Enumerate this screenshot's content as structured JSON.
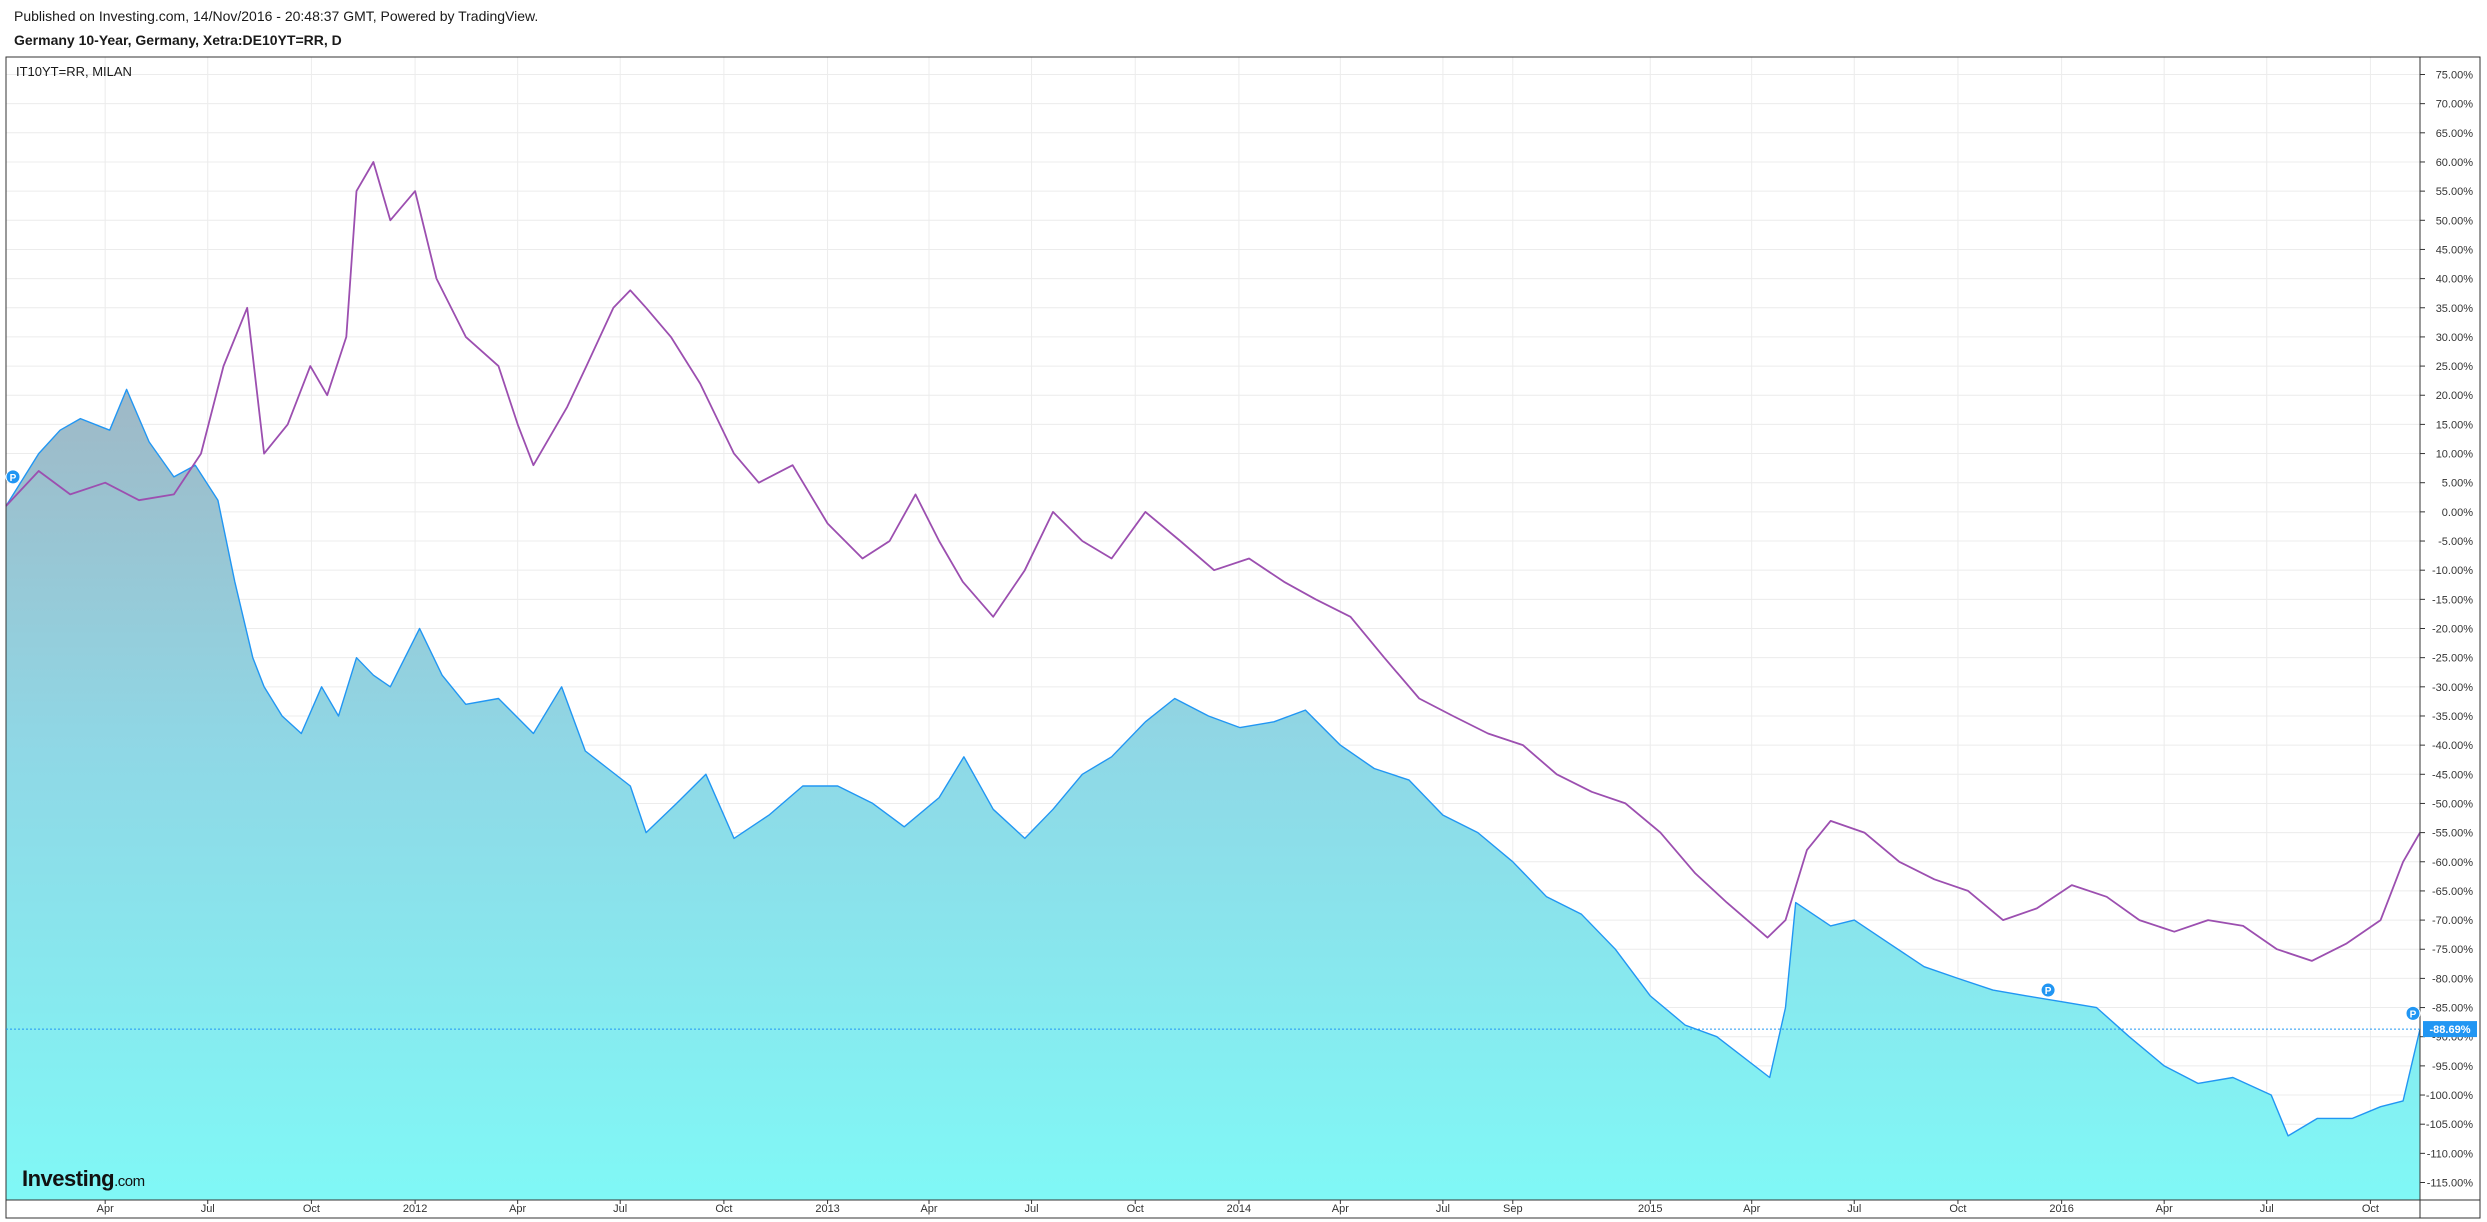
{
  "header": {
    "published": "Published on Investing.com, 14/Nov/2016 - 20:48:37 GMT, Powered by TradingView.",
    "title": "Germany 10-Year, Germany, Xetra:DE10YT=RR, D"
  },
  "legend": {
    "compare_symbol": "IT10YT=RR, MILAN"
  },
  "logo": {
    "brand": "Investing",
    "suffix": ".com"
  },
  "chart_data": {
    "type": "area",
    "title": "Germany 10-Year, Germany, Xetra:DE10YT=RR, D",
    "ylim": [
      -118,
      78
    ],
    "y_ticks": [
      75,
      70,
      65,
      60,
      55,
      50,
      45,
      40,
      35,
      30,
      25,
      20,
      15,
      10,
      5,
      0,
      -5,
      -10,
      -15,
      -20,
      -25,
      -30,
      -35,
      -40,
      -45,
      -50,
      -55,
      -60,
      -65,
      -70,
      -75,
      -80,
      -85,
      -90,
      -95,
      -100,
      -105,
      -110,
      -115
    ],
    "y_tick_suffix": ".00%",
    "x_tick_labels": [
      {
        "label": "Apr",
        "date": "2011-04-01"
      },
      {
        "label": "Jul",
        "date": "2011-07-01"
      },
      {
        "label": "Oct",
        "date": "2011-10-01"
      },
      {
        "label": "2012",
        "date": "2012-01-01"
      },
      {
        "label": "Apr",
        "date": "2012-04-01"
      },
      {
        "label": "Jul",
        "date": "2012-07-01"
      },
      {
        "label": "Oct",
        "date": "2012-10-01"
      },
      {
        "label": "2013",
        "date": "2013-01-01"
      },
      {
        "label": "Apr",
        "date": "2013-04-01"
      },
      {
        "label": "Jul",
        "date": "2013-07-01"
      },
      {
        "label": "Oct",
        "date": "2013-10-01"
      },
      {
        "label": "2014",
        "date": "2014-01-01"
      },
      {
        "label": "Apr",
        "date": "2014-04-01"
      },
      {
        "label": "Jul",
        "date": "2014-07-01"
      },
      {
        "label": "Sep",
        "date": "2014-09-01"
      },
      {
        "label": "2015",
        "date": "2015-01-01"
      },
      {
        "label": "Apr",
        "date": "2015-04-01"
      },
      {
        "label": "Jul",
        "date": "2015-07-01"
      },
      {
        "label": "Oct",
        "date": "2015-10-01"
      },
      {
        "label": "2016",
        "date": "2016-01-01"
      },
      {
        "label": "Apr",
        "date": "2016-04-01"
      },
      {
        "label": "Jul",
        "date": "2016-07-01"
      },
      {
        "label": "Oct",
        "date": "2016-10-01"
      }
    ],
    "x_range": [
      "2011-01-03",
      "2016-11-14"
    ],
    "grid": true,
    "last_value_label": "-88.69%",
    "last_value": -88.69,
    "series": [
      {
        "name": "Germany 10-Year",
        "style": "area",
        "line_color": "#2196f3",
        "x": [
          "2011-01-03",
          "2011-02-01",
          "2011-02-20",
          "2011-03-10",
          "2011-04-05",
          "2011-04-20",
          "2011-05-10",
          "2011-06-01",
          "2011-06-20",
          "2011-07-10",
          "2011-07-25",
          "2011-08-10",
          "2011-08-20",
          "2011-09-05",
          "2011-09-22",
          "2011-10-10",
          "2011-10-25",
          "2011-11-10",
          "2011-11-25",
          "2011-12-10",
          "2012-01-05",
          "2012-01-25",
          "2012-02-15",
          "2012-03-15",
          "2012-04-15",
          "2012-05-10",
          "2012-05-31",
          "2012-06-20",
          "2012-07-10",
          "2012-07-24",
          "2012-08-20",
          "2012-09-15",
          "2012-10-10",
          "2012-11-10",
          "2012-12-10",
          "2013-01-10",
          "2013-02-10",
          "2013-03-10",
          "2013-04-10",
          "2013-05-02",
          "2013-05-28",
          "2013-06-25",
          "2013-07-20",
          "2013-08-15",
          "2013-09-10",
          "2013-10-10",
          "2013-11-05",
          "2013-12-05",
          "2014-01-02",
          "2014-02-01",
          "2014-03-01",
          "2014-04-01",
          "2014-05-01",
          "2014-06-01",
          "2014-07-01",
          "2014-08-01",
          "2014-09-01",
          "2014-10-01",
          "2014-11-01",
          "2014-12-01",
          "2015-01-01",
          "2015-02-01",
          "2015-03-01",
          "2015-04-17",
          "2015-05-01",
          "2015-05-10",
          "2015-06-10",
          "2015-07-01",
          "2015-08-01",
          "2015-09-01",
          "2015-10-01",
          "2015-11-01",
          "2015-12-01",
          "2016-01-01",
          "2016-02-01",
          "2016-03-01",
          "2016-04-01",
          "2016-05-01",
          "2016-06-01",
          "2016-07-05",
          "2016-07-20",
          "2016-08-15",
          "2016-09-15",
          "2016-10-10",
          "2016-10-30",
          "2016-11-14"
        ],
        "values": [
          1,
          10,
          14,
          16,
          14,
          21,
          12,
          6,
          8,
          2,
          -12,
          -25,
          -30,
          -35,
          -38,
          -30,
          -35,
          -25,
          -28,
          -30,
          -20,
          -28,
          -33,
          -32,
          -38,
          -30,
          -41,
          -44,
          -47,
          -55,
          -50,
          -45,
          -56,
          -52,
          -47,
          -47,
          -50,
          -54,
          -49,
          -42,
          -51,
          -56,
          -51,
          -45,
          -42,
          -36,
          -32,
          -35,
          -37,
          -36,
          -34,
          -40,
          -44,
          -46,
          -52,
          -55,
          -60,
          -66,
          -69,
          -75,
          -83,
          -88,
          -90,
          -97,
          -85,
          -67,
          -71,
          -70,
          -74,
          -78,
          -80,
          -82,
          -83,
          -84,
          -85,
          -90,
          -95,
          -98,
          -97,
          -100,
          -107,
          -104,
          -104,
          -102,
          -101,
          -88.69
        ]
      },
      {
        "name": "IT10YT=RR, MILAN",
        "style": "line",
        "line_color": "#9c4fb0",
        "x": [
          "2011-01-03",
          "2011-02-01",
          "2011-03-01",
          "2011-04-01",
          "2011-05-01",
          "2011-06-01",
          "2011-06-25",
          "2011-07-15",
          "2011-08-05",
          "2011-08-20",
          "2011-09-10",
          "2011-09-30",
          "2011-10-15",
          "2011-11-01",
          "2011-11-10",
          "2011-11-25",
          "2011-12-10",
          "2012-01-01",
          "2012-01-20",
          "2012-02-15",
          "2012-03-15",
          "2012-04-01",
          "2012-04-15",
          "2012-05-15",
          "2012-06-01",
          "2012-06-25",
          "2012-07-10",
          "2012-07-24",
          "2012-08-15",
          "2012-09-10",
          "2012-10-10",
          "2012-11-01",
          "2012-12-01",
          "2013-01-01",
          "2013-02-01",
          "2013-02-25",
          "2013-03-20",
          "2013-04-10",
          "2013-05-01",
          "2013-05-28",
          "2013-06-25",
          "2013-07-20",
          "2013-08-15",
          "2013-09-10",
          "2013-10-10",
          "2013-11-10",
          "2013-12-10",
          "2014-01-10",
          "2014-02-10",
          "2014-03-10",
          "2014-04-10",
          "2014-05-10",
          "2014-06-10",
          "2014-07-10",
          "2014-08-10",
          "2014-09-10",
          "2014-10-10",
          "2014-11-10",
          "2014-12-10",
          "2015-01-10",
          "2015-02-10",
          "2015-03-10",
          "2015-04-15",
          "2015-05-01",
          "2015-05-20",
          "2015-06-10",
          "2015-07-10",
          "2015-08-10",
          "2015-09-10",
          "2015-10-10",
          "2015-11-10",
          "2015-12-10",
          "2016-01-10",
          "2016-02-10",
          "2016-03-10",
          "2016-04-10",
          "2016-05-10",
          "2016-06-10",
          "2016-07-10",
          "2016-08-10",
          "2016-09-10",
          "2016-10-10",
          "2016-10-30",
          "2016-11-14"
        ],
        "values": [
          1,
          7,
          3,
          5,
          2,
          3,
          10,
          25,
          35,
          10,
          15,
          25,
          20,
          30,
          55,
          60,
          50,
          55,
          40,
          30,
          25,
          15,
          8,
          18,
          25,
          35,
          38,
          35,
          30,
          22,
          10,
          5,
          8,
          -2,
          -8,
          -5,
          3,
          -5,
          -12,
          -18,
          -10,
          0,
          -5,
          -8,
          0,
          -5,
          -10,
          -8,
          -12,
          -15,
          -18,
          -25,
          -32,
          -35,
          -38,
          -40,
          -45,
          -48,
          -50,
          -55,
          -62,
          -67,
          -73,
          -70,
          -58,
          -53,
          -55,
          -60,
          -63,
          -65,
          -70,
          -68,
          -64,
          -66,
          -70,
          -72,
          -70,
          -71,
          -75,
          -77,
          -74,
          -70,
          -60,
          -55
        ]
      }
    ],
    "markers": [
      {
        "label": "P",
        "series": "Germany 10-Year",
        "date": "2011-01-03",
        "value": 6
      },
      {
        "label": "P",
        "series": "Germany 10-Year",
        "date": "2015-12-20",
        "value": -82
      },
      {
        "label": "P",
        "series": "Germany 10-Year",
        "date": "2016-11-14",
        "value": -86
      }
    ]
  }
}
